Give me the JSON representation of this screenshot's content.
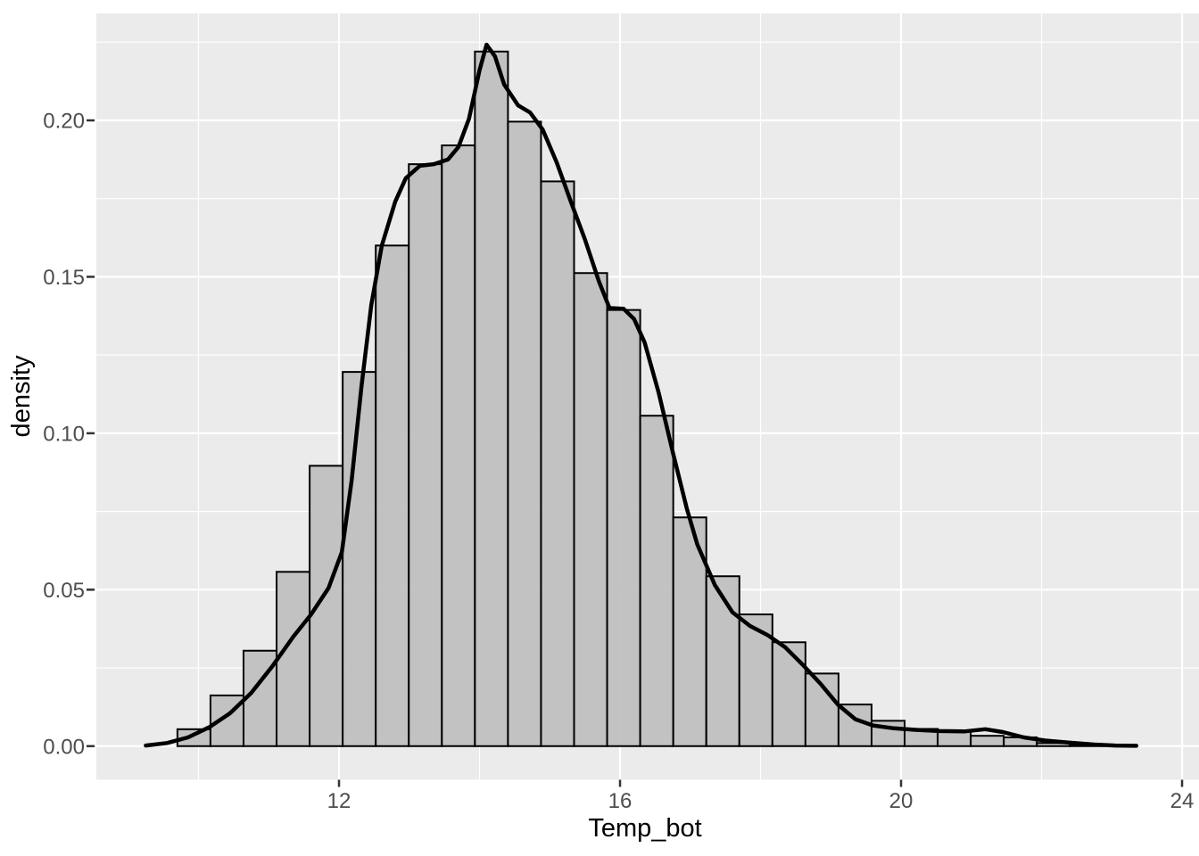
{
  "figure": {
    "background": "#ffffff",
    "description": "ggplot2-style histogram of Temp_bot with overlaid kernel density curve"
  },
  "chart_data": {
    "type": "histogram+density-line",
    "title": "",
    "xlabel": "Temp_bot",
    "ylabel": "density",
    "xlim": [
      8.546,
      24.241
    ],
    "ylim": [
      -0.01075,
      0.2342
    ],
    "grid": "on",
    "legend": "none",
    "x_major_ticks": [
      {
        "value": 12,
        "label": "12"
      },
      {
        "value": 16,
        "label": "16"
      },
      {
        "value": 20,
        "label": "20"
      },
      {
        "value": 24,
        "label": "24"
      }
    ],
    "y_major_ticks": [
      {
        "value": 0.0,
        "label": "0.00"
      },
      {
        "value": 0.05,
        "label": "0.05"
      },
      {
        "value": 0.1,
        "label": "0.10"
      },
      {
        "value": 0.15,
        "label": "0.15"
      },
      {
        "value": 0.2,
        "label": "0.20"
      }
    ],
    "x_minor_ticks": [
      10,
      14,
      18,
      22
    ],
    "y_minor_ticks": [
      0.025,
      0.075,
      0.125,
      0.175,
      0.225
    ],
    "histogram": {
      "bin_start": 9.7,
      "bin_width": 0.4705,
      "densities": [
        0.0054,
        0.0162,
        0.0305,
        0.0557,
        0.0896,
        0.1196,
        0.16,
        0.186,
        0.192,
        0.222,
        0.1996,
        0.1805,
        0.1512,
        0.1394,
        0.1056,
        0.0731,
        0.0543,
        0.0421,
        0.0332,
        0.0232,
        0.0133,
        0.0081,
        0.0055,
        0.0048,
        0.0033,
        0.0028,
        0.001,
        0.0005
      ]
    },
    "density_curve": {
      "points": [
        [
          9.25,
          0.0002
        ],
        [
          9.55,
          0.001
        ],
        [
          9.85,
          0.0028
        ],
        [
          10.15,
          0.006
        ],
        [
          10.45,
          0.0105
        ],
        [
          10.75,
          0.017
        ],
        [
          11.05,
          0.0255
        ],
        [
          11.35,
          0.035
        ],
        [
          11.6,
          0.042
        ],
        [
          11.85,
          0.0505
        ],
        [
          12.04,
          0.062
        ],
        [
          12.18,
          0.085
        ],
        [
          12.32,
          0.115
        ],
        [
          12.46,
          0.141
        ],
        [
          12.61,
          0.16
        ],
        [
          12.8,
          0.174
        ],
        [
          12.95,
          0.1815
        ],
        [
          13.15,
          0.1855
        ],
        [
          13.35,
          0.186
        ],
        [
          13.55,
          0.1875
        ],
        [
          13.7,
          0.1915
        ],
        [
          13.85,
          0.2005
        ],
        [
          14.0,
          0.216
        ],
        [
          14.1,
          0.2242
        ],
        [
          14.22,
          0.2205
        ],
        [
          14.35,
          0.2115
        ],
        [
          14.55,
          0.2048
        ],
        [
          14.72,
          0.2025
        ],
        [
          14.9,
          0.197
        ],
        [
          15.1,
          0.1865
        ],
        [
          15.3,
          0.174
        ],
        [
          15.5,
          0.162
        ],
        [
          15.7,
          0.1485
        ],
        [
          15.85,
          0.14
        ],
        [
          16.05,
          0.1398
        ],
        [
          16.2,
          0.1365
        ],
        [
          16.35,
          0.129
        ],
        [
          16.55,
          0.113
        ],
        [
          16.75,
          0.094
        ],
        [
          16.95,
          0.076
        ],
        [
          17.1,
          0.0645
        ],
        [
          17.35,
          0.0515
        ],
        [
          17.6,
          0.0428
        ],
        [
          17.85,
          0.0384
        ],
        [
          18.1,
          0.0355
        ],
        [
          18.35,
          0.0316
        ],
        [
          18.6,
          0.026
        ],
        [
          18.85,
          0.02
        ],
        [
          19.1,
          0.0133
        ],
        [
          19.35,
          0.0086
        ],
        [
          19.6,
          0.0066
        ],
        [
          19.9,
          0.0057
        ],
        [
          20.2,
          0.0052
        ],
        [
          20.55,
          0.0048
        ],
        [
          20.9,
          0.0047
        ],
        [
          21.2,
          0.0054
        ],
        [
          21.45,
          0.0045
        ],
        [
          21.75,
          0.0028
        ],
        [
          22.05,
          0.0018
        ],
        [
          22.4,
          0.0011
        ],
        [
          22.75,
          0.0005
        ],
        [
          23.05,
          0.0002
        ],
        [
          23.35,
          0.0001
        ]
      ]
    },
    "style": {
      "panel_bg": "#ebebeb",
      "grid_color": "#ffffff",
      "bar_fill": "#bebebe",
      "bar_stroke": "#000000",
      "curve_color": "#000000",
      "tick_mark_color": "#333333",
      "tick_text_color": "#4d4d4d",
      "title_text_color": "#000000"
    }
  }
}
